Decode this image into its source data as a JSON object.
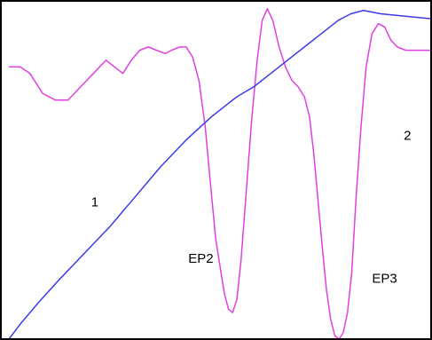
{
  "chart_data": {
    "type": "line",
    "title": "",
    "xlabel": "",
    "ylabel": "",
    "grid": false,
    "xlim": [
      0,
      1
    ],
    "ylim": [
      0,
      1
    ],
    "series": [
      {
        "color": "#e040e0",
        "points": [
          [
            0.0,
            0.82
          ],
          [
            0.027,
            0.82
          ],
          [
            0.05,
            0.8
          ],
          [
            0.08,
            0.74
          ],
          [
            0.11,
            0.72
          ],
          [
            0.14,
            0.72
          ],
          [
            0.17,
            0.76
          ],
          [
            0.2,
            0.8
          ],
          [
            0.23,
            0.84
          ],
          [
            0.25,
            0.82
          ],
          [
            0.27,
            0.8
          ],
          [
            0.29,
            0.84
          ],
          [
            0.31,
            0.87
          ],
          [
            0.33,
            0.88
          ],
          [
            0.35,
            0.87
          ],
          [
            0.37,
            0.86
          ],
          [
            0.385,
            0.87
          ],
          [
            0.405,
            0.88
          ],
          [
            0.42,
            0.88
          ],
          [
            0.435,
            0.85
          ],
          [
            0.45,
            0.78
          ],
          [
            0.465,
            0.64
          ],
          [
            0.478,
            0.46
          ],
          [
            0.49,
            0.3
          ],
          [
            0.5,
            0.22
          ],
          [
            0.51,
            0.14
          ],
          [
            0.52,
            0.09
          ],
          [
            0.53,
            0.08
          ],
          [
            0.54,
            0.12
          ],
          [
            0.55,
            0.24
          ],
          [
            0.562,
            0.44
          ],
          [
            0.575,
            0.66
          ],
          [
            0.588,
            0.84
          ],
          [
            0.6,
            0.96
          ],
          [
            0.612,
            0.995
          ],
          [
            0.625,
            0.96
          ],
          [
            0.64,
            0.88
          ],
          [
            0.655,
            0.82
          ],
          [
            0.67,
            0.78
          ],
          [
            0.685,
            0.76
          ],
          [
            0.7,
            0.73
          ],
          [
            0.712,
            0.67
          ],
          [
            0.722,
            0.56
          ],
          [
            0.732,
            0.42
          ],
          [
            0.742,
            0.28
          ],
          [
            0.752,
            0.15
          ],
          [
            0.762,
            0.06
          ],
          [
            0.772,
            0.01
          ],
          [
            0.782,
            0.0
          ],
          [
            0.792,
            0.02
          ],
          [
            0.802,
            0.08
          ],
          [
            0.812,
            0.2
          ],
          [
            0.822,
            0.42
          ],
          [
            0.834,
            0.64
          ],
          [
            0.846,
            0.82
          ],
          [
            0.86,
            0.92
          ],
          [
            0.875,
            0.95
          ],
          [
            0.89,
            0.94
          ],
          [
            0.905,
            0.9
          ],
          [
            0.92,
            0.88
          ],
          [
            0.94,
            0.87
          ],
          [
            0.96,
            0.87
          ],
          [
            0.98,
            0.87
          ],
          [
            1.0,
            0.87
          ]
        ]
      },
      {
        "color": "#3a3ae8",
        "points": [
          [
            0.0,
            0.0
          ],
          [
            0.03,
            0.05
          ],
          [
            0.07,
            0.11
          ],
          [
            0.12,
            0.18
          ],
          [
            0.18,
            0.26
          ],
          [
            0.24,
            0.34
          ],
          [
            0.3,
            0.43
          ],
          [
            0.36,
            0.52
          ],
          [
            0.42,
            0.6
          ],
          [
            0.48,
            0.67
          ],
          [
            0.54,
            0.73
          ],
          [
            0.58,
            0.76
          ],
          [
            0.62,
            0.8
          ],
          [
            0.66,
            0.84
          ],
          [
            0.7,
            0.88
          ],
          [
            0.74,
            0.92
          ],
          [
            0.78,
            0.96
          ],
          [
            0.81,
            0.98
          ],
          [
            0.84,
            0.99
          ],
          [
            0.88,
            0.98
          ],
          [
            0.92,
            0.975
          ],
          [
            0.96,
            0.97
          ],
          [
            1.0,
            0.965
          ]
        ]
      }
    ],
    "annotations": [
      {
        "text": "1",
        "x": 0.195,
        "y": 0.4
      },
      {
        "text": "2",
        "x": 0.935,
        "y": 0.6
      },
      {
        "text": "EP2",
        "x": 0.425,
        "y": 0.23
      },
      {
        "text": "EP3",
        "x": 0.86,
        "y": 0.17
      }
    ]
  }
}
